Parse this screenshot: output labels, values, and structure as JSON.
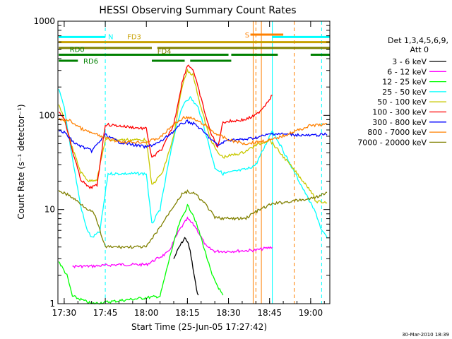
{
  "footer_date": "30-Mar-2010 18:39",
  "chart_data": {
    "type": "line",
    "title": "HESSI Observing Summary Count Rates",
    "xlabel": "Start Time (25-Jun-05 17:27:42)",
    "ylabel": "Count Rate (s⁻¹ detector⁻¹)",
    "yscale": "log",
    "ylim": [
      1,
      1000
    ],
    "xlim": [
      "17:27:42",
      "19:07:00"
    ],
    "x_ticks": [
      "17:30",
      "17:45",
      "18:00",
      "18:15",
      "18:30",
      "18:45",
      "19:00"
    ],
    "y_ticks": [
      "1",
      "10",
      "100",
      "1000"
    ],
    "legend_title": "Det 1,3,4,5,6,9,",
    "legend_subtitle": "Att 0",
    "legend_position": "right",
    "series": [
      {
        "name": "3 - 6 keV",
        "color": "#000000",
        "points": [
          [
            "18:10",
            3.0
          ],
          [
            "18:12",
            4.0
          ],
          [
            "18:14",
            5.0
          ],
          [
            "18:15",
            4.6
          ],
          [
            "18:16",
            3.6
          ],
          [
            "18:17",
            2.4
          ],
          [
            "18:18",
            1.6
          ],
          [
            "18:19",
            1.2
          ]
        ]
      },
      {
        "name": "6 - 12 keV",
        "color": "#ff00ff",
        "points": [
          [
            "17:33",
            2.5
          ],
          [
            "17:40",
            2.5
          ],
          [
            "17:50",
            2.6
          ],
          [
            "18:00",
            2.6
          ],
          [
            "18:08",
            3.5
          ],
          [
            "18:12",
            6.0
          ],
          [
            "18:15",
            8.0
          ],
          [
            "18:18",
            6.5
          ],
          [
            "18:22",
            4.0
          ],
          [
            "18:25",
            3.6
          ],
          [
            "18:30",
            3.6
          ],
          [
            "18:40",
            3.7
          ],
          [
            "18:46",
            4.0
          ]
        ]
      },
      {
        "name": "12 - 25 keV",
        "color": "#00ff00",
        "points": [
          [
            "17:28",
            2.8
          ],
          [
            "17:31",
            2.0
          ],
          [
            "17:33",
            1.2
          ],
          [
            "17:40",
            1.0
          ],
          [
            "18:05",
            1.2
          ],
          [
            "18:09",
            3.5
          ],
          [
            "18:12",
            7.0
          ],
          [
            "18:15",
            11.0
          ],
          [
            "18:17",
            9.0
          ],
          [
            "18:20",
            5.0
          ],
          [
            "18:24",
            2.0
          ],
          [
            "18:28",
            1.2
          ]
        ]
      },
      {
        "name": "25 - 50 keV",
        "color": "#00ffff",
        "points": [
          [
            "17:28",
            190
          ],
          [
            "17:30",
            120
          ],
          [
            "17:33",
            35
          ],
          [
            "17:36",
            11
          ],
          [
            "17:38",
            6.5
          ],
          [
            "17:40",
            5.0
          ],
          [
            "17:43",
            5.8
          ],
          [
            "17:46",
            24
          ],
          [
            "17:55",
            24
          ],
          [
            "18:00",
            24
          ],
          [
            "18:02",
            7
          ],
          [
            "18:05",
            10
          ],
          [
            "18:08",
            30
          ],
          [
            "18:11",
            80
          ],
          [
            "18:14",
            140
          ],
          [
            "18:16",
            155
          ],
          [
            "18:19",
            120
          ],
          [
            "18:22",
            60
          ],
          [
            "18:25",
            28
          ],
          [
            "18:28",
            24
          ],
          [
            "18:37",
            27
          ],
          [
            "18:40",
            30
          ],
          [
            "18:43",
            45
          ],
          [
            "18:46",
            70
          ],
          [
            "19:02",
            9
          ],
          [
            "19:04",
            6
          ],
          [
            "19:06",
            5
          ]
        ]
      },
      {
        "name": "50 - 100 keV",
        "color": "#c8c800",
        "points": [
          [
            "17:28",
            130
          ],
          [
            "17:30",
            90
          ],
          [
            "17:33",
            45
          ],
          [
            "17:36",
            25
          ],
          [
            "17:39",
            20
          ],
          [
            "17:42",
            21
          ],
          [
            "17:45",
            55
          ],
          [
            "18:00",
            55
          ],
          [
            "18:02",
            18
          ],
          [
            "18:06",
            25
          ],
          [
            "18:10",
            60
          ],
          [
            "18:13",
            200
          ],
          [
            "18:15",
            300
          ],
          [
            "18:17",
            270
          ],
          [
            "18:20",
            120
          ],
          [
            "18:23",
            60
          ],
          [
            "18:26",
            40
          ],
          [
            "18:28",
            36
          ],
          [
            "18:35",
            40
          ],
          [
            "18:40",
            48
          ],
          [
            "18:45",
            55
          ],
          [
            "19:00",
            16
          ],
          [
            "19:02",
            12
          ],
          [
            "19:06",
            12
          ]
        ]
      },
      {
        "name": "100 - 300 keV",
        "color": "#ff0000",
        "points": [
          [
            "17:28",
            108
          ],
          [
            "17:30",
            95
          ],
          [
            "17:33",
            42
          ],
          [
            "17:36",
            21
          ],
          [
            "17:39",
            17
          ],
          [
            "17:42",
            18
          ],
          [
            "17:45",
            80
          ],
          [
            "18:00",
            72
          ],
          [
            "18:02",
            35
          ],
          [
            "18:06",
            45
          ],
          [
            "18:10",
            80
          ],
          [
            "18:13",
            220
          ],
          [
            "18:15",
            345
          ],
          [
            "18:17",
            310
          ],
          [
            "18:20",
            150
          ],
          [
            "18:23",
            72
          ],
          [
            "18:26",
            45
          ],
          [
            "18:28",
            85
          ],
          [
            "18:36",
            90
          ],
          [
            "18:40",
            100
          ],
          [
            "18:43",
            125
          ],
          [
            "18:46",
            165
          ]
        ]
      },
      {
        "name": "300 - 800 keV",
        "color": "#0000ff",
        "points": [
          [
            "17:28",
            68
          ],
          [
            "17:30",
            66
          ],
          [
            "17:34",
            50
          ],
          [
            "17:40",
            42
          ],
          [
            "17:45",
            62
          ],
          [
            "17:50",
            52
          ],
          [
            "18:00",
            46
          ],
          [
            "18:05",
            52
          ],
          [
            "18:10",
            68
          ],
          [
            "18:13",
            82
          ],
          [
            "18:15",
            86
          ],
          [
            "18:18",
            80
          ],
          [
            "18:22",
            62
          ],
          [
            "18:26",
            48
          ],
          [
            "18:30",
            55
          ],
          [
            "18:35",
            55
          ],
          [
            "18:40",
            58
          ],
          [
            "18:46",
            64
          ],
          [
            "19:00",
            61
          ],
          [
            "19:06",
            63
          ]
        ]
      },
      {
        "name": "800 - 7000 keV",
        "color": "#ff8000",
        "points": [
          [
            "17:28",
            90
          ],
          [
            "17:32",
            88
          ],
          [
            "17:37",
            70
          ],
          [
            "17:42",
            62
          ],
          [
            "17:47",
            55
          ],
          [
            "17:52",
            52
          ],
          [
            "18:00",
            52
          ],
          [
            "18:05",
            58
          ],
          [
            "18:10",
            80
          ],
          [
            "18:14",
            96
          ],
          [
            "18:17",
            92
          ],
          [
            "18:21",
            80
          ],
          [
            "18:25",
            65
          ],
          [
            "18:30",
            55
          ],
          [
            "18:36",
            50
          ],
          [
            "18:40",
            52
          ],
          [
            "18:46",
            55
          ],
          [
            "19:00",
            78
          ],
          [
            "19:06",
            80
          ]
        ]
      },
      {
        "name": "7000 - 20000 keV",
        "color": "#808000",
        "points": [
          [
            "17:28",
            16
          ],
          [
            "17:32",
            14
          ],
          [
            "17:37",
            11
          ],
          [
            "17:41",
            9
          ],
          [
            "17:45",
            4.0
          ],
          [
            "18:00",
            4.0
          ],
          [
            "18:05",
            6.5
          ],
          [
            "18:10",
            11
          ],
          [
            "18:13",
            14.5
          ],
          [
            "18:15",
            15.5
          ],
          [
            "18:18",
            14.5
          ],
          [
            "18:22",
            11
          ],
          [
            "18:25",
            8.2
          ],
          [
            "18:30",
            8.0
          ],
          [
            "18:36",
            8.0
          ],
          [
            "18:40",
            9.5
          ],
          [
            "18:46",
            11.5
          ],
          [
            "19:00",
            13
          ],
          [
            "19:06",
            15
          ]
        ]
      }
    ],
    "flag_bars": [
      {
        "label": "N",
        "color": "#00ffff",
        "y": 680,
        "segments": [
          [
            "17:28",
            "17:45"
          ],
          [
            "18:46",
            "19:07"
          ]
        ]
      },
      {
        "label": "FD3",
        "color": "#c8a000",
        "y": 600,
        "segments": [
          [
            "17:28",
            "19:07"
          ]
        ]
      },
      {
        "label": "S",
        "color": "#ff8000",
        "y": 720,
        "segments": [
          [
            "18:38",
            "18:50"
          ]
        ]
      },
      {
        "label": "FD4",
        "color": "#808000",
        "y": 520,
        "segments": [
          [
            "17:28",
            "18:02"
          ],
          [
            "18:04",
            "19:07"
          ]
        ]
      },
      {
        "label": "RD0",
        "color": "#008000",
        "y": 440,
        "segments": [
          [
            "17:28",
            "18:30"
          ],
          [
            "18:31",
            "18:48"
          ],
          [
            "19:00",
            "19:07"
          ]
        ]
      },
      {
        "label": "RD6",
        "color": "#008000",
        "y": 380,
        "segments": [
          [
            "17:28",
            "17:35"
          ],
          [
            "18:02",
            "18:14"
          ],
          [
            "18:16",
            "18:31"
          ]
        ]
      }
    ],
    "markers": [
      {
        "time": "17:45",
        "color": "#00ffff",
        "style": "dashed"
      },
      {
        "time": "18:39",
        "color": "#ff8000",
        "style": "solid"
      },
      {
        "time": "18:40",
        "color": "#ff8000",
        "style": "dashed"
      },
      {
        "time": "18:42",
        "color": "#ff8000",
        "style": "solid"
      },
      {
        "time": "18:46",
        "color": "#00ffff",
        "style": "solid"
      },
      {
        "time": "18:54",
        "color": "#ff8000",
        "style": "dashed"
      },
      {
        "time": "19:04",
        "color": "#00ffff",
        "style": "dashed"
      }
    ]
  }
}
